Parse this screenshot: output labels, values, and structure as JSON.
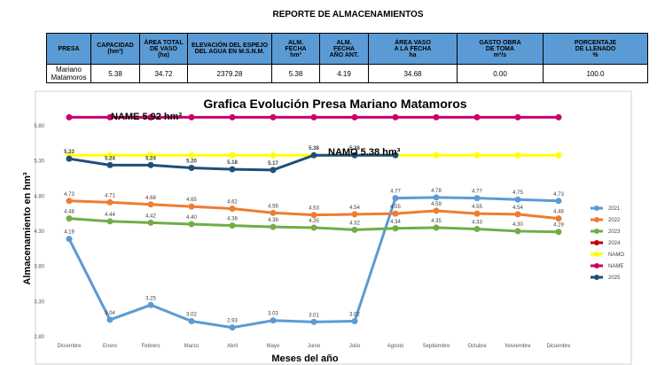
{
  "header": {
    "title": "REPORTE DE ALMACENAMIENTOS"
  },
  "table": {
    "columns": [
      [
        "PRESA"
      ],
      [
        "CAPACIDAD",
        "(hm³)"
      ],
      [
        "ÁREA TOTAL",
        "DE VASO",
        "(ha)"
      ],
      [
        "ELEVACIÓN DEL ESPEJO",
        "DEL AGUA EN M.S.N.M."
      ],
      [
        "ALM.",
        "FECHA",
        "hm³"
      ],
      [
        "ALM.",
        "FECHA",
        "AÑO ANT."
      ],
      [
        "ÁREA VASO",
        "A LA FECHA",
        "ha"
      ],
      [
        "GASTO OBRA",
        "DE TOMA",
        "m³/s"
      ],
      [
        "PORCENTAJE",
        "DE LLENADO",
        "%"
      ]
    ],
    "rows": [
      [
        [
          "Mariano",
          "Matamoros"
        ],
        "5.38",
        "34.72",
        "2379.28",
        "5.38",
        "4.19",
        "34.68",
        "0.00",
        "100.0"
      ]
    ]
  },
  "chart_data": {
    "type": "line",
    "title": "Grafica Evolución Presa Mariano Matamoros",
    "x_label": "Meses del año",
    "y_label": "Almacenamiento en hm³",
    "categories": [
      "Diciembre",
      "Enero",
      "Febrero",
      "Marzo",
      "Abril",
      "Mayo",
      "Junio",
      "Julio",
      "Agosto",
      "Septiembre",
      "Octubre",
      "Noviembre",
      "Diciembre"
    ],
    "ylim": [
      2.8,
      6.0
    ],
    "yticks": [
      {
        "value": 2.8,
        "label": "2.80"
      },
      {
        "value": 3.3,
        "label": "3.30"
      },
      {
        "value": 3.8,
        "label": "3.80"
      },
      {
        "value": 4.3,
        "label": "4.30"
      },
      {
        "value": 4.8,
        "label": "4.80"
      },
      {
        "value": 5.3,
        "label": "5.30"
      },
      {
        "value": 5.8,
        "label": "5.80"
      }
    ],
    "grid": false,
    "legend": "right",
    "annotations": [
      {
        "text": "NAME  5.92 hm³"
      },
      {
        "text": "NAMO   5.38 hm³"
      }
    ],
    "series": [
      {
        "name": "2021",
        "color": "#5b9bd5",
        "values": [
          4.19,
          3.04,
          3.25,
          3.02,
          2.93,
          3.03,
          3.01,
          3.02,
          4.77,
          4.78,
          4.77,
          4.75,
          4.73
        ],
        "value_labels": [
          "4.19",
          "3.04",
          "3.25",
          "3.02",
          "2.93",
          "3.03",
          "3.01",
          "3.02",
          "4.77",
          "4.78",
          "4.77",
          "4.75",
          "4.73"
        ]
      },
      {
        "name": "2022",
        "color": "#ed7d31",
        "values": [
          4.73,
          4.71,
          4.68,
          4.65,
          4.62,
          4.56,
          4.53,
          4.54,
          4.55,
          4.59,
          4.55,
          4.54,
          4.48
        ],
        "value_labels": [
          "4.73",
          "4.71",
          "4.68",
          "4.65",
          "4.62",
          "4.56",
          "4.53",
          "4.54",
          "4.55",
          "4.59",
          "4.55",
          "4.54",
          "4.48"
        ]
      },
      {
        "name": "2023",
        "color": "#70ad47",
        "values": [
          4.48,
          4.44,
          4.42,
          4.4,
          4.38,
          4.36,
          4.35,
          4.32,
          4.34,
          4.35,
          4.33,
          4.3,
          4.29
        ],
        "value_labels": [
          "4.48",
          "4.44",
          "4.42",
          "4.40",
          "4.38",
          "4.36",
          "4.35",
          "4.32",
          "4.34",
          "4.35",
          "4.33",
          "4.30",
          "4.29"
        ]
      },
      {
        "name": "2024",
        "color": "#c00000",
        "values": [
          null,
          null,
          null,
          null,
          null,
          null,
          null,
          null,
          null,
          null,
          null,
          null,
          null
        ]
      },
      {
        "name": "NAMO",
        "color": "#ffff00",
        "values": [
          5.38,
          5.38,
          5.38,
          5.38,
          5.38,
          5.38,
          5.38,
          5.38,
          5.38,
          5.38,
          5.38,
          5.38,
          5.38
        ]
      },
      {
        "name": "NAME",
        "color": "#cc0066",
        "values": [
          5.92,
          5.92,
          5.92,
          5.92,
          5.92,
          5.92,
          5.92,
          5.92,
          5.92,
          5.92,
          5.92,
          5.92,
          5.92
        ]
      },
      {
        "name": "2025",
        "color": "#1f4e79",
        "values": [
          5.33,
          5.24,
          5.24,
          5.2,
          5.18,
          5.17,
          5.38,
          5.38,
          5.38,
          null,
          null,
          null,
          null
        ],
        "value_labels": [
          "5.33",
          "5.24",
          "5.24",
          "5.20",
          "5.18",
          "5.17",
          "5.38",
          "5.38",
          null,
          null,
          null,
          null,
          null
        ]
      }
    ]
  }
}
